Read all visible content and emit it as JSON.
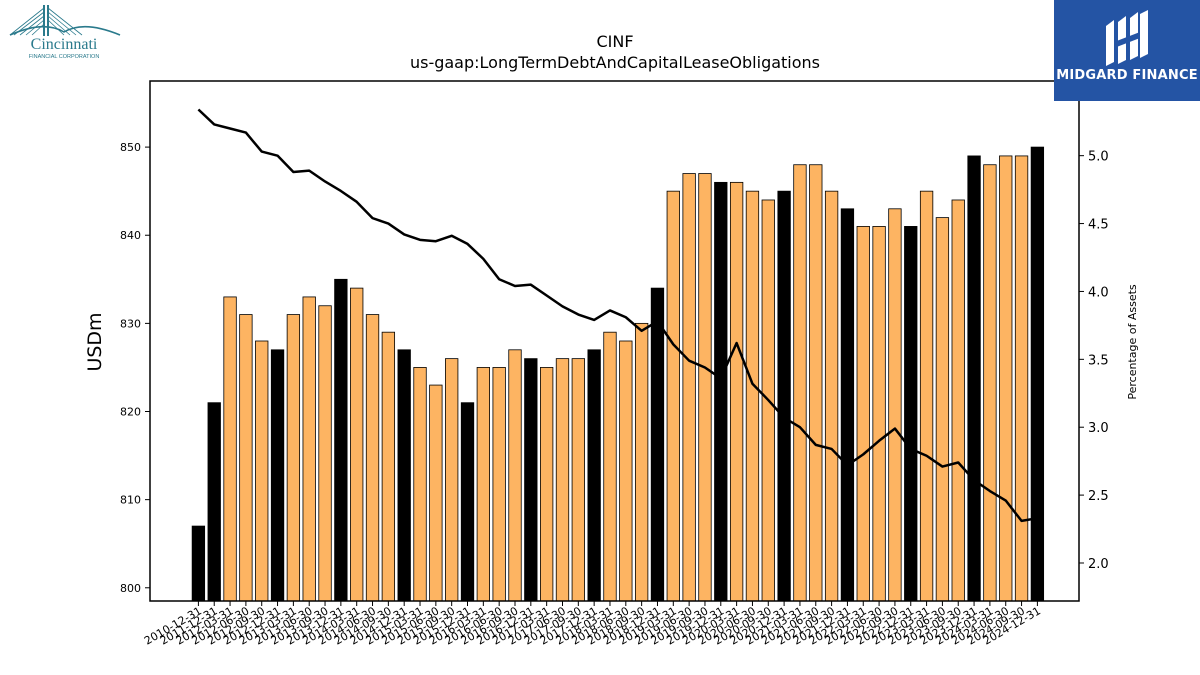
{
  "logos": {
    "left_text": "Cincinnati",
    "left_subtext": "FINANCIAL CORPORATION",
    "right_text": "MIDGARD FINANCE"
  },
  "colors": {
    "bar_quarterly": "#fdb462",
    "bar_annual": "#000000",
    "line": "#000000",
    "logo_blue": "#2454a4",
    "cincinnati_teal": "#2a7a8c"
  },
  "chart_data": {
    "type": "bar",
    "title": "CINF",
    "subtitle": "us-gaap:LongTermDebtAndCapitalLeaseObligations",
    "ylabel": "USDm",
    "y2label": "Percentage of Assets",
    "ylim": [
      798.5,
      857.5
    ],
    "y2lim": [
      1.72,
      5.55
    ],
    "yticks": [
      800,
      810,
      820,
      830,
      840,
      850
    ],
    "y2ticks": [
      "2.0",
      "2.5",
      "3.0",
      "3.5",
      "4.0",
      "4.5",
      "5.0"
    ],
    "categories": [
      "2010-12-31",
      "2011-12-31",
      "2012-03-31",
      "2012-06-30",
      "2012-09-30",
      "2012-12-31",
      "2013-03-31",
      "2013-06-30",
      "2013-09-30",
      "2013-12-31",
      "2014-03-31",
      "2014-06-30",
      "2014-09-30",
      "2014-12-31",
      "2015-03-31",
      "2015-06-30",
      "2015-09-30",
      "2015-12-31",
      "2016-03-31",
      "2016-06-30",
      "2016-09-30",
      "2016-12-31",
      "2017-03-31",
      "2017-06-30",
      "2017-09-30",
      "2017-12-31",
      "2018-03-31",
      "2018-06-30",
      "2018-09-30",
      "2018-12-31",
      "2019-03-31",
      "2019-06-30",
      "2019-09-30",
      "2019-12-31",
      "2020-03-31",
      "2020-06-30",
      "2020-09-30",
      "2020-12-31",
      "2021-03-31",
      "2021-06-30",
      "2021-09-30",
      "2021-12-31",
      "2022-03-31",
      "2022-06-30",
      "2022-09-30",
      "2022-12-31",
      "2023-03-31",
      "2023-06-30",
      "2023-09-30",
      "2023-12-31",
      "2024-03-31",
      "2024-06-30",
      "2024-09-30",
      "2024-12-31"
    ],
    "tick_labels": [
      "2010-12-31",
      "2011-12-31",
      "2012-03-31",
      "2012-06-30",
      "2012-09-30",
      "2012-12-31",
      "2013-03-31",
      "2013-06-30",
      "2013-09-30",
      "2013-12-31",
      "2014-03-31",
      "2014-06-30",
      "2014-09-30",
      "2014-12-31",
      "2015-03-31",
      "2015-06-30",
      "2015-09-30",
      "2015-12-31",
      "2016-03-31",
      "2016-06-30",
      "2016-09-30",
      "2016-12-31",
      "2017-03-31",
      "2017-06-30",
      "2017-09-30",
      "2017-12-31",
      "2018-03-31",
      "2018-06-30",
      "2018-09-30",
      "2018-12-31",
      "2019-03-31",
      "2019-06-30",
      "2019-09-30",
      "2019-12-31",
      "2020-03-31",
      "2020-06-30",
      "2020-09-30",
      "2020-12-31",
      "2021-03-31",
      "2021-06-30",
      "2021-09-30",
      "2021-12-31",
      "2022-03-31",
      "2022-06-30",
      "2022-09-30",
      "2022-12-31",
      "2023-03-31",
      "2023-06-30",
      "2023-09-30",
      "2023-12-31",
      "2024-03-31",
      "2024-06-30",
      "2024-09-30",
      "2024-12-31"
    ],
    "annual": [
      true,
      true,
      false,
      false,
      false,
      true,
      false,
      false,
      false,
      true,
      false,
      false,
      false,
      true,
      false,
      false,
      false,
      true,
      false,
      false,
      false,
      true,
      false,
      false,
      false,
      true,
      false,
      false,
      false,
      true,
      false,
      false,
      false,
      true,
      false,
      false,
      false,
      true,
      false,
      false,
      false,
      true,
      false,
      false,
      false,
      true,
      false,
      false,
      false,
      true,
      false,
      false,
      false,
      true
    ],
    "series": [
      {
        "axis": "left",
        "type": "bar",
        "values": [
          807,
          821,
          833,
          831,
          828,
          827,
          831,
          833,
          832,
          835,
          834,
          831,
          829,
          827,
          825,
          823,
          826,
          821,
          825,
          825,
          827,
          826,
          825,
          826,
          826,
          827,
          829,
          828,
          830,
          834,
          845,
          847,
          847,
          846,
          846,
          845,
          844,
          845,
          848,
          848,
          845,
          843,
          841,
          841,
          843,
          841,
          845,
          842,
          844,
          849,
          848,
          849,
          849,
          850
        ]
      },
      {
        "axis": "right",
        "type": "line",
        "values": [
          5.34,
          5.23,
          5.2,
          5.17,
          5.03,
          5.0,
          4.88,
          4.89,
          4.81,
          4.74,
          4.66,
          4.54,
          4.5,
          4.42,
          4.38,
          4.37,
          4.41,
          4.35,
          4.24,
          4.09,
          4.04,
          4.05,
          3.97,
          3.89,
          3.83,
          3.79,
          3.86,
          3.81,
          3.71,
          3.78,
          3.61,
          3.49,
          3.44,
          3.36,
          3.62,
          3.32,
          3.2,
          3.07,
          3.0,
          2.87,
          2.84,
          2.72,
          2.8,
          2.9,
          2.99,
          2.84,
          2.79,
          2.71,
          2.74,
          2.61,
          2.53,
          2.46,
          2.31,
          2.33
        ]
      }
    ]
  }
}
